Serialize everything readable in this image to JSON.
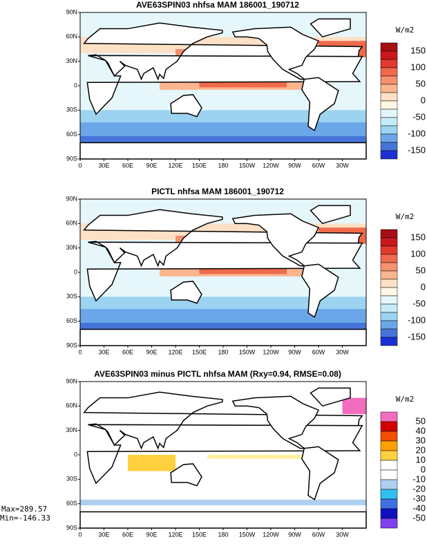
{
  "panels": [
    {
      "title": "AVE63SPIN03 nhfsa MAM 186001_190712",
      "units": "W/m2",
      "colorbar": {
        "labels": [
          "150",
          "100",
          "50",
          "0",
          "-50",
          "-100",
          "-150"
        ],
        "colors": [
          "#a50f15",
          "#cb181d",
          "#e03b2c",
          "#f06a4c",
          "#f7906f",
          "#fbb58f",
          "#fde0c5",
          "#fff7e6",
          "#e6f7fb",
          "#c4ecf7",
          "#9cd3f0",
          "#6ba7e8",
          "#4574d8",
          "#1b2fd6"
        ]
      }
    },
    {
      "title": "PICTL nhfsa MAM 186001_190712",
      "units": "W/m2",
      "colorbar": {
        "labels": [
          "150",
          "100",
          "50",
          "0",
          "-50",
          "-100",
          "-150"
        ],
        "colors": [
          "#a50f15",
          "#cb181d",
          "#e03b2c",
          "#f06a4c",
          "#f7906f",
          "#fbb58f",
          "#fde0c5",
          "#fff7e6",
          "#e6f7fb",
          "#c4ecf7",
          "#9cd3f0",
          "#6ba7e8",
          "#4574d8",
          "#1b2fd6"
        ]
      }
    },
    {
      "title": "AVE63SPIN03 minus PICTL nhfsa MAM (Rxy=0.94, RMSE=0.08)",
      "units": "W/m2",
      "colorbar": {
        "labels": [
          "50",
          "40",
          "30",
          "20",
          "10",
          "0",
          "-10",
          "-20",
          "-30",
          "-40",
          "-50"
        ],
        "colors": [
          "#f06dc0",
          "#d20000",
          "#f05000",
          "#ffa000",
          "#ffd040",
          "#ffffff",
          "#ffffff",
          "#aed0f0",
          "#30c0f0",
          "#4070e0",
          "#1010c0",
          "#8040f0"
        ]
      }
    }
  ],
  "lat_labels": [
    "90N",
    "60N",
    "30N",
    "0",
    "30S",
    "60S",
    "90S"
  ],
  "lon_labels": [
    "0",
    "30E",
    "60E",
    "90E",
    "120E",
    "150E",
    "180",
    "150W",
    "120W",
    "90W",
    "60W",
    "30W"
  ],
  "stats": {
    "max": "Max=289.57",
    "min": "Min=-146.33"
  }
}
